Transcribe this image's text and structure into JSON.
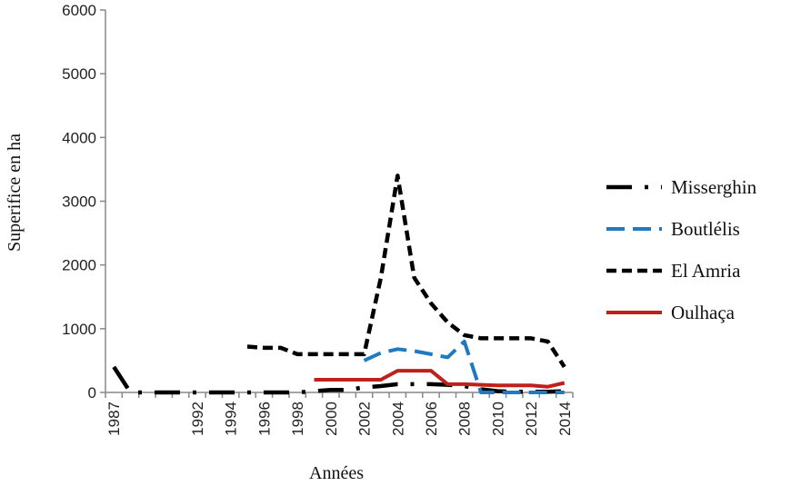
{
  "chart_data": {
    "type": "line",
    "xlabel": "Années",
    "ylabel": "Superifice en ha",
    "ylim": [
      0,
      6000
    ],
    "yticks": [
      0,
      1000,
      2000,
      3000,
      4000,
      5000,
      6000
    ],
    "categories": [
      "1987",
      "1988",
      "1989",
      "1990",
      "1991",
      "1992",
      "1993",
      "1994",
      "1995",
      "1996",
      "1997",
      "1998",
      "1999",
      "2000",
      "2001",
      "2002",
      "2003",
      "2004",
      "2005",
      "2006",
      "2007",
      "2008",
      "2009",
      "2010",
      "2011",
      "2012",
      "2013",
      "2014"
    ],
    "x_tick_labels": [
      "1987",
      "1992",
      "1994",
      "1996",
      "1998",
      "2000",
      "2002",
      "2004",
      "2006",
      "2008",
      "2010",
      "2012",
      "2014"
    ],
    "x_tick_index": [
      0,
      5,
      7,
      9,
      11,
      13,
      15,
      17,
      19,
      21,
      23,
      25,
      27
    ],
    "grid": false,
    "legend_position": "right",
    "series": [
      {
        "name": "Misserghin",
        "color": "#000000",
        "style": "dashdot",
        "values": [
          400,
          0,
          0,
          0,
          0,
          0,
          0,
          0,
          0,
          0,
          0,
          0,
          20,
          40,
          40,
          80,
          100,
          130,
          130,
          130,
          120,
          100,
          50,
          20,
          10,
          10,
          10,
          20
        ]
      },
      {
        "name": "Boutlélis",
        "color": "#1f7ac0",
        "style": "dashed",
        "values": [
          null,
          null,
          null,
          null,
          null,
          null,
          null,
          null,
          null,
          null,
          null,
          null,
          null,
          null,
          null,
          500,
          620,
          680,
          650,
          600,
          550,
          800,
          0,
          0,
          0,
          0,
          0,
          0
        ]
      },
      {
        "name": "El Amria",
        "color": "#000000",
        "style": "dotted",
        "values": [
          null,
          null,
          null,
          null,
          null,
          null,
          null,
          null,
          720,
          700,
          700,
          600,
          600,
          600,
          600,
          600,
          1800,
          3400,
          1800,
          1400,
          1100,
          900,
          850,
          850,
          850,
          850,
          800,
          400
        ]
      },
      {
        "name": "Oulhaça",
        "color": "#c0201c",
        "style": "solid",
        "values": [
          null,
          null,
          null,
          null,
          null,
          null,
          null,
          null,
          null,
          null,
          null,
          null,
          200,
          200,
          200,
          200,
          200,
          340,
          340,
          340,
          130,
          130,
          120,
          110,
          110,
          110,
          90,
          150
        ]
      }
    ]
  }
}
